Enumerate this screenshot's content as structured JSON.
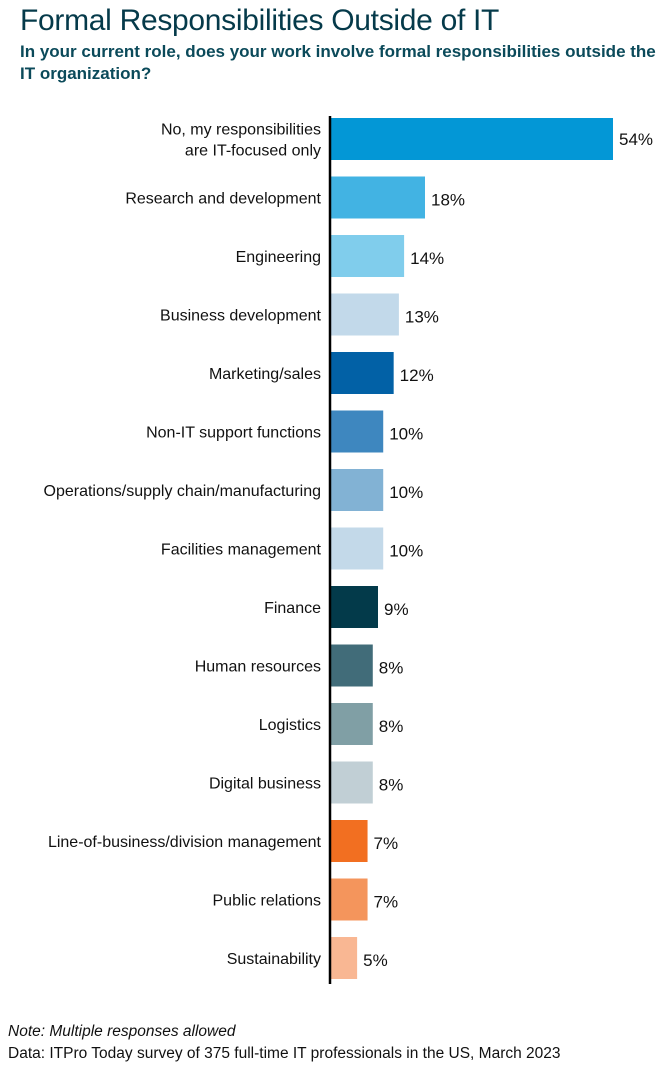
{
  "chart_data": {
    "type": "bar",
    "orientation": "horizontal",
    "title": "Formal Responsibilities Outside of IT",
    "subtitle": "In your current role, does your work involve formal responsibilities outside the IT organization?",
    "categories": [
      "No, my responsibilities\nare IT-focused only",
      "Research and development",
      "Engineering",
      "Business development",
      "Marketing/sales",
      "Non-IT support functions",
      "Operations/supply chain/manufacturing",
      "Facilities management",
      "Finance",
      "Human resources",
      "Logistics",
      "Digital business",
      "Line-of-business/division management",
      "Public relations",
      "Sustainability"
    ],
    "values": [
      54,
      18,
      14,
      13,
      12,
      10,
      10,
      10,
      9,
      8,
      8,
      8,
      7,
      7,
      5
    ],
    "value_labels": [
      "54%",
      "18%",
      "14%",
      "13%",
      "12%",
      "10%",
      "10%",
      "10%",
      "9%",
      "8%",
      "8%",
      "8%",
      "7%",
      "7%",
      "5%"
    ],
    "colors": [
      "#0397d6",
      "#42b3e3",
      "#80cdec",
      "#c2d9ea",
      "#0261a6",
      "#3e87bf",
      "#82b2d4",
      "#c3d9e9",
      "#033a4a",
      "#416c79",
      "#809fa5",
      "#c1cfd5",
      "#f26f21",
      "#f4955c",
      "#f9b793"
    ],
    "xlim": [
      0,
      54
    ],
    "unit": "%",
    "grid": false,
    "legend": "none"
  },
  "notes": {
    "note": "Note: Multiple responses allowed",
    "source": "Data: ITPro Today survey of 375 full-time IT professionals in the US, March 2023"
  }
}
